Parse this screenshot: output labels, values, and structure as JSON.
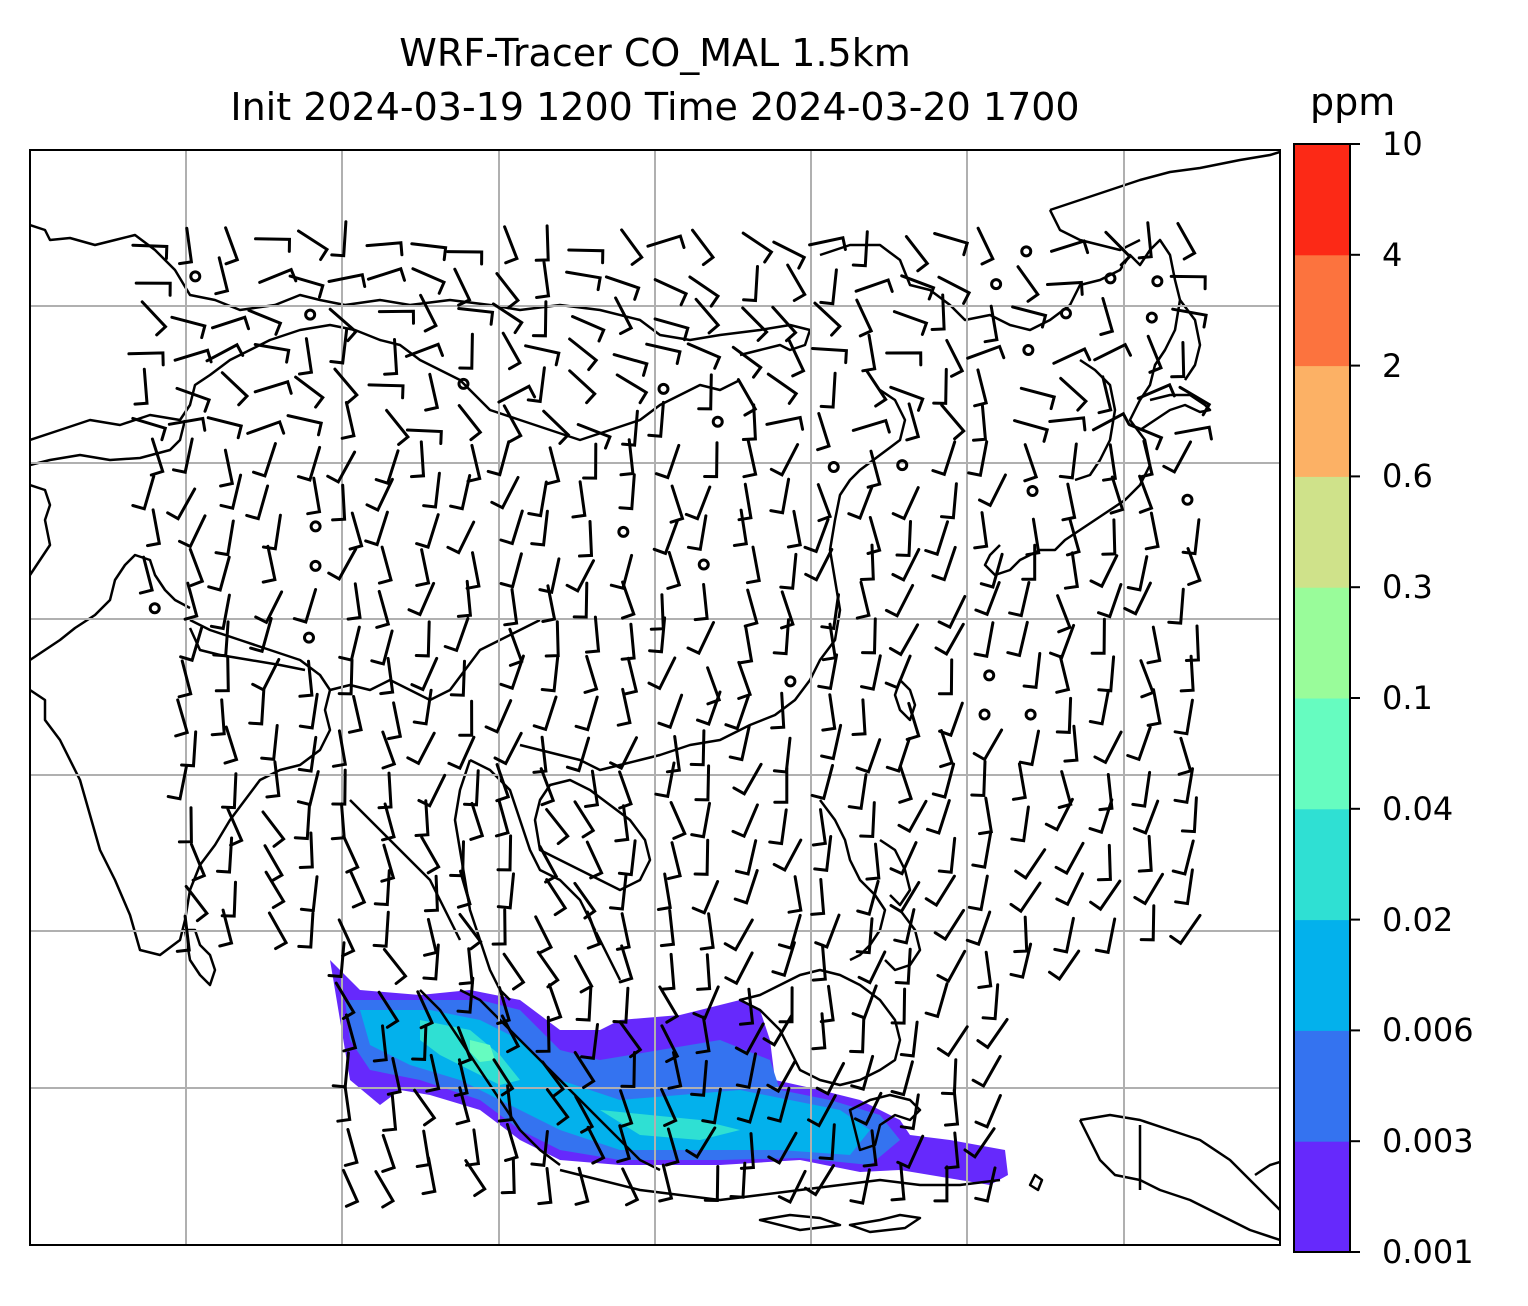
{
  "title": {
    "line1": "WRF-Tracer CO_MAL 1.5km",
    "line2": "Init 2024-03-19 1200 Time 2024-03-20 1700"
  },
  "colorbar": {
    "unit": "ppm",
    "levels": [
      "0.001",
      "0.003",
      "0.006",
      "0.02",
      "0.04",
      "0.1",
      "0.3",
      "0.6",
      "2",
      "4",
      "10"
    ],
    "colors": [
      "#6629fc",
      "#3473f0",
      "#03b1ec",
      "#2fe0d3",
      "#66fcc0",
      "#99fc9a",
      "#cfe28a",
      "#fcb165",
      "#fc733e",
      "#fc2916"
    ]
  },
  "map": {
    "variable": "CO_MAL tracer concentration",
    "overlay": "wind barbs",
    "coastline_color": "#000000",
    "grid_color": "#b0b0b0"
  }
}
